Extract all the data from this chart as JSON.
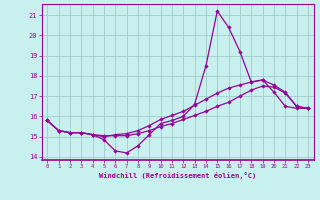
{
  "xlabel": "Windchill (Refroidissement éolien,°C)",
  "background_color": "#c8f0ee",
  "grid_color": "#a0cccc",
  "line_color": "#990099",
  "x_hours": [
    0,
    1,
    2,
    3,
    4,
    5,
    6,
    7,
    8,
    9,
    10,
    11,
    12,
    13,
    14,
    15,
    16,
    17,
    18,
    19,
    20,
    21,
    22,
    23
  ],
  "series1": [
    15.8,
    15.3,
    15.2,
    15.2,
    15.1,
    14.85,
    14.3,
    14.2,
    14.55,
    15.1,
    15.65,
    15.8,
    16.0,
    16.6,
    18.5,
    21.2,
    20.4,
    19.2,
    17.7,
    17.8,
    17.2,
    16.5,
    16.4,
    16.4
  ],
  "series2": [
    15.8,
    15.3,
    15.2,
    15.2,
    15.1,
    15.05,
    15.05,
    15.05,
    15.15,
    15.3,
    15.5,
    15.65,
    15.85,
    16.05,
    16.25,
    16.5,
    16.7,
    17.0,
    17.3,
    17.5,
    17.45,
    17.15,
    16.5,
    16.4
  ],
  "series3": [
    15.8,
    15.3,
    15.2,
    15.2,
    15.1,
    15.0,
    15.1,
    15.15,
    15.3,
    15.55,
    15.85,
    16.05,
    16.25,
    16.55,
    16.85,
    17.15,
    17.4,
    17.55,
    17.7,
    17.8,
    17.55,
    17.2,
    16.5,
    16.4
  ],
  "ylim": [
    13.85,
    21.55
  ],
  "yticks": [
    14,
    15,
    16,
    17,
    18,
    19,
    20,
    21
  ],
  "xticks": [
    0,
    1,
    2,
    3,
    4,
    5,
    6,
    7,
    8,
    9,
    10,
    11,
    12,
    13,
    14,
    15,
    16,
    17,
    18,
    19,
    20,
    21,
    22,
    23
  ]
}
